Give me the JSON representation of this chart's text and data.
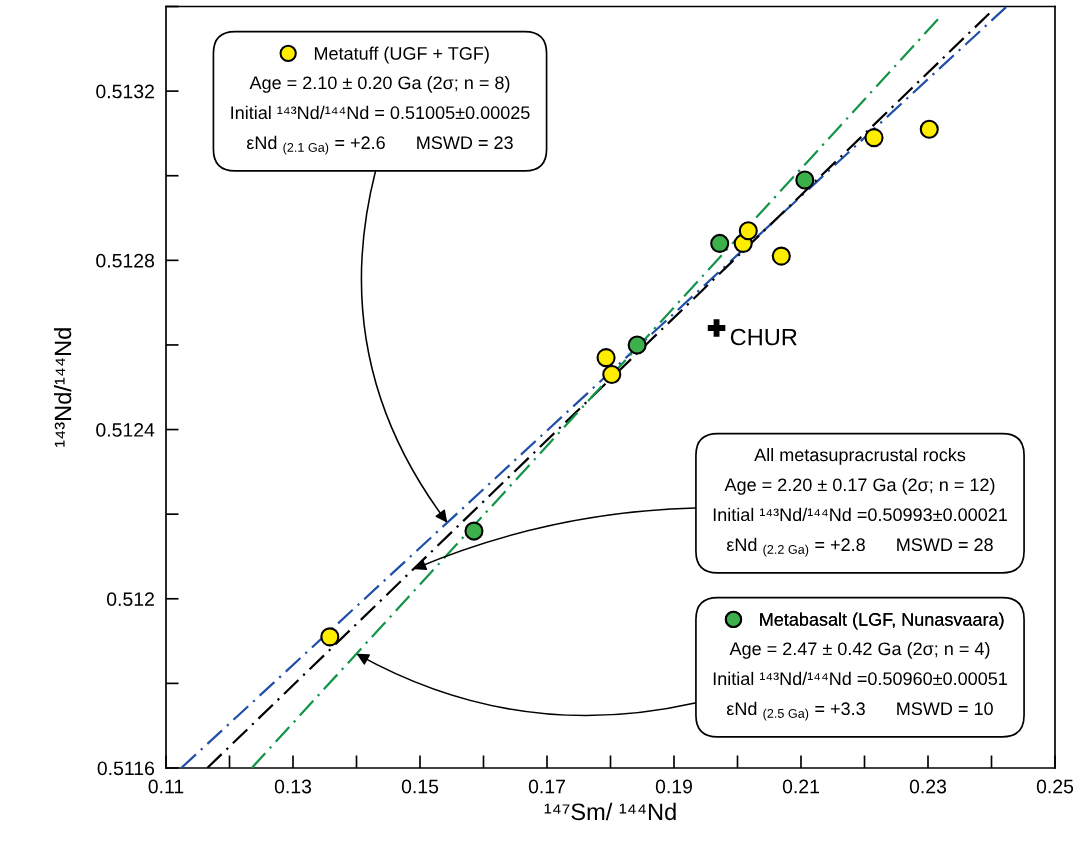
{
  "chart_data": {
    "type": "scatter",
    "xlabel": "¹⁴⁷Sm/ ¹⁴⁴Nd",
    "ylabel": "¹⁴³Nd/¹⁴⁴Nd",
    "xlim": [
      0.11,
      0.25
    ],
    "xticks": [
      0.11,
      0.13,
      0.15,
      0.17,
      0.19,
      0.21,
      0.23,
      0.25
    ],
    "ylim": [
      0.5116,
      0.5134
    ],
    "yticks": [
      0.5116,
      0.512,
      0.5124,
      0.5128,
      0.5132
    ],
    "grid": false,
    "legend": "top left",
    "series": [
      {
        "type": "scatter",
        "name": "Metatuff (UGF + TGF)",
        "color": "#ffed00",
        "marker": "circle",
        "x": [
          0.1358,
          0.1793,
          0.1802,
          0.2009,
          0.2017,
          0.2069,
          0.2215,
          0.2302
        ],
        "values": [
          0.51191,
          0.51257,
          0.51253,
          0.51284,
          0.51287,
          0.51281,
          0.51309,
          0.51311
        ]
      },
      {
        "type": "scatter",
        "name": "Metabasalt (LGF, Nunasvaara)",
        "color": "#3cb04a",
        "marker": "circle",
        "x": [
          0.1585,
          0.1842,
          0.1972,
          0.2106
        ],
        "values": [
          0.51216,
          0.5126,
          0.51284,
          0.51299
        ]
      },
      {
        "type": "scatter",
        "name": "CHUR",
        "color": "#000000",
        "marker": "cross",
        "x": [
          0.1967
        ],
        "values": [
          0.51264
        ]
      },
      {
        "type": "line",
        "color": "#1f4fa8",
        "line_style": "dashed",
        "x": [
          0.1124,
          0.2424
        ],
        "values": [
          0.5116,
          0.5134
        ]
      },
      {
        "type": "line",
        "color": "#000000",
        "line_style": "dashed",
        "x": [
          0.1165,
          0.2401
        ],
        "values": [
          0.5116,
          0.51339
        ]
      },
      {
        "type": "line",
        "color": "#13944a",
        "line_style": "dashed",
        "x": [
          0.1235,
          0.2322
        ],
        "values": [
          0.5116,
          0.51338
        ]
      }
    ],
    "annotations": [
      {
        "text": "Age = 2.10 ± 0.20 Ga (2σ; n = 8)\nInitial ¹⁴³Nd/¹⁴⁴Nd = 0.51005±0.00025\nεNd $_{(2.1 Ga)}$ = +2.6      MSWD = 23",
        "x": 0.1543,
        "y": 0.51218
      },
      {
        "text": "All metasupracrustal rocks\nAge = 2.20 ± 0.17 Ga (2σ; n = 12)\nInitial ¹⁴³Nd/¹⁴⁴Nd =0.50993±0.00021\nεNd $_{(2.2 Ga)}$ = +2.8      MSWD = 28",
        "x": 0.149,
        "y": 0.51207
      },
      {
        "text": "Age = 2.47 ± 0.42 Ga (2σ; n = 4)\nInitial ¹⁴³Nd/¹⁴⁴Nd =0.50960±0.00051\nεNd $_{(2.5 Ga)}$ = +3.3      MSWD = 10",
        "x": 0.14,
        "y": 0.51187
      }
    ]
  }
}
